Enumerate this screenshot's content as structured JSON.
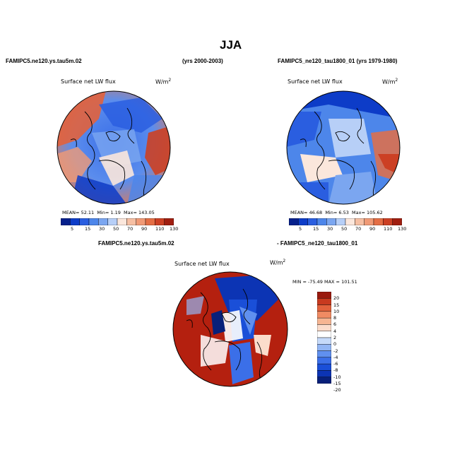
{
  "figure": {
    "title": "JJA",
    "colors": {
      "abs_scale": [
        "#06208c",
        "#0d3cc8",
        "#2a5ee0",
        "#4d86ea",
        "#7ba6f0",
        "#b7cff7",
        "#fbe7dc",
        "#f6bfa3",
        "#f09a76",
        "#e46e45",
        "#cc4024",
        "#a01e10"
      ],
      "diff_scale": [
        "#08207a",
        "#0c34b4",
        "#1a4fd8",
        "#3b6fe8",
        "#6090ef",
        "#93b6f4",
        "#c6daf9",
        "#ffffff",
        "#fbdccb",
        "#f6b592",
        "#f08b63",
        "#e2623c",
        "#c83a1f",
        "#9a1a0e"
      ]
    }
  },
  "chart_data": [
    {
      "type": "heatmap",
      "projection": "polar stereographic (North Pole)",
      "run_label": "FAMIPC5.ne120.ys.tau5m.02",
      "period": "(yrs 2000-2003)",
      "title": "Surface net LW flux",
      "units_base": "W/m",
      "units_exp": "2",
      "stats": {
        "mean_label": "MEAN=",
        "mean": "52.11",
        "min_label": "Min=",
        "min": "1.19",
        "max_label": "Max=",
        "max": "143.05"
      },
      "colorbar_ticks": [
        "5",
        "15",
        "30",
        "50",
        "70",
        "90",
        "110",
        "130"
      ]
    },
    {
      "type": "heatmap",
      "projection": "polar stereographic (North Pole)",
      "run_label": "FAMIPC5_ne120_tau1800_01 (yrs 1979-1980)",
      "title": "Surface net LW flux",
      "units_base": "W/m",
      "units_exp": "2",
      "stats": {
        "mean_label": "MEAN=",
        "mean": "46.68",
        "min_label": "Min=",
        "min": "6.53",
        "max_label": "Max=",
        "max": "105.62"
      },
      "colorbar_ticks": [
        "5",
        "15",
        "30",
        "50",
        "70",
        "90",
        "110",
        "130"
      ]
    },
    {
      "type": "heatmap",
      "projection": "polar stereographic (North Pole)",
      "run_label_a": "FAMIPC5.ne120.ys.tau5m.02",
      "run_label_b": "- FAMIPC5_ne120_tau1800_01",
      "title": "Surface net LW flux",
      "units_base": "W/m",
      "units_exp": "2",
      "stats_text": "MIN = -75.49  MAX = 101.51",
      "colorbar_ticks": [
        "20",
        "15",
        "10",
        "8",
        "6",
        "4",
        "2",
        "0",
        "-2",
        "-4",
        "-6",
        "-8",
        "-10",
        "-15",
        "-20"
      ]
    }
  ]
}
